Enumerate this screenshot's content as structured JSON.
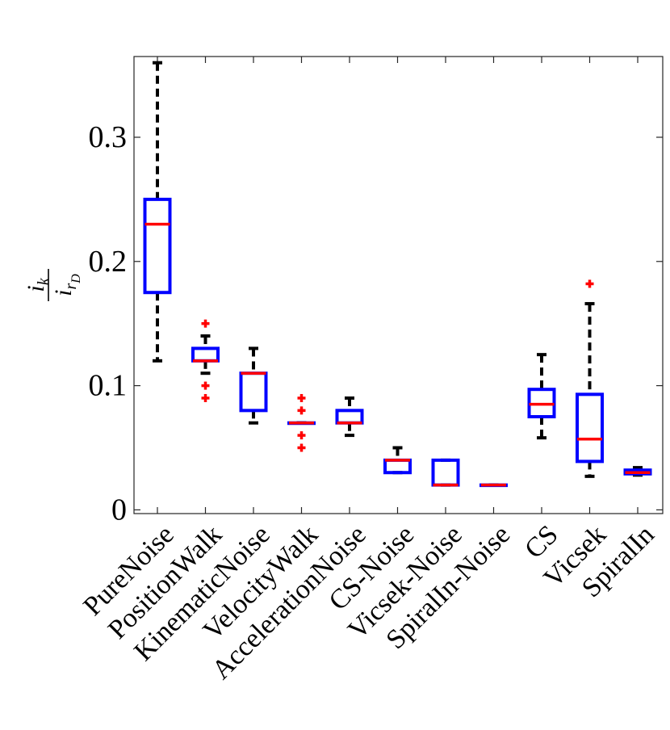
{
  "chart_data": {
    "type": "box",
    "title": "",
    "xlabel": "",
    "ylabel": {
      "base": "i",
      "num_sub": "k",
      "den_sub": "r",
      "den_subsub": "D"
    },
    "ylim": [
      -0.003,
      0.365
    ],
    "yticks": [
      0,
      0.1,
      0.2,
      0.3
    ],
    "ytick_labels": [
      "0",
      "0.1",
      "0.2",
      "0.3"
    ],
    "grid": false,
    "categories": [
      "PureNoise",
      "PositionWalk",
      "KinematicNoise",
      "VelocityWalk",
      "AccelerationNoise",
      "CS-Noise",
      "Vicsek-Noise",
      "SpiralIn-Noise",
      "CS",
      "Vicsek",
      "SpiralIn"
    ],
    "boxes": [
      {
        "whisker_low": 0.12,
        "q1": 0.175,
        "median": 0.23,
        "q3": 0.25,
        "whisker_high": 0.36,
        "outliers": []
      },
      {
        "whisker_low": 0.11,
        "q1": 0.12,
        "median": 0.12,
        "q3": 0.13,
        "whisker_high": 0.14,
        "outliers": [
          0.15,
          0.1,
          0.09
        ]
      },
      {
        "whisker_low": 0.07,
        "q1": 0.08,
        "median": 0.11,
        "q3": 0.11,
        "whisker_high": 0.13,
        "outliers": []
      },
      {
        "whisker_low": 0.07,
        "q1": 0.07,
        "median": 0.07,
        "q3": 0.07,
        "whisker_high": 0.07,
        "outliers": [
          0.09,
          0.08,
          0.06,
          0.05
        ]
      },
      {
        "whisker_low": 0.06,
        "q1": 0.07,
        "median": 0.07,
        "q3": 0.08,
        "whisker_high": 0.09,
        "outliers": []
      },
      {
        "whisker_low": 0.03,
        "q1": 0.03,
        "median": 0.04,
        "q3": 0.04,
        "whisker_high": 0.05,
        "outliers": []
      },
      {
        "whisker_low": 0.02,
        "q1": 0.02,
        "median": 0.02,
        "q3": 0.04,
        "whisker_high": 0.04,
        "outliers": []
      },
      {
        "whisker_low": 0.02,
        "q1": 0.02,
        "median": 0.02,
        "q3": 0.02,
        "whisker_high": 0.02,
        "outliers": []
      },
      {
        "whisker_low": 0.058,
        "q1": 0.075,
        "median": 0.085,
        "q3": 0.097,
        "whisker_high": 0.125,
        "outliers": []
      },
      {
        "whisker_low": 0.027,
        "q1": 0.039,
        "median": 0.057,
        "q3": 0.093,
        "whisker_high": 0.166,
        "outliers": [
          0.182
        ]
      },
      {
        "whisker_low": 0.028,
        "q1": 0.029,
        "median": 0.03,
        "q3": 0.032,
        "whisker_high": 0.034,
        "outliers": []
      }
    ],
    "colors": {
      "box": "#0000ff",
      "median": "#ff0000",
      "whisker": "#000000",
      "outlier": "#ff0000",
      "axis": "#262626"
    }
  }
}
